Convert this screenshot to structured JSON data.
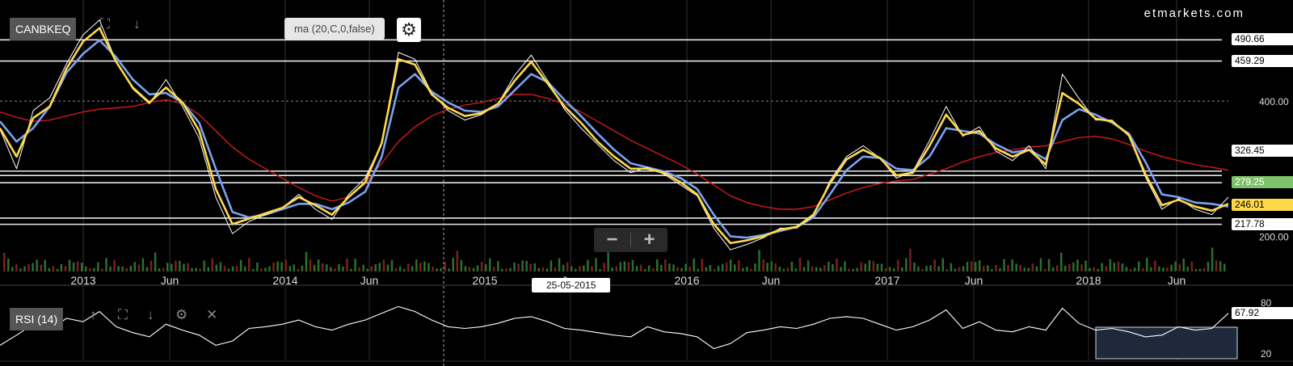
{
  "symbol": "CANBKEQ",
  "watermark": "etmarkets.com",
  "indicator_label": "ma (20,C,0,false)",
  "rsi_label": "RSI (14)",
  "cursor_date": "25-05-2015",
  "zoom": {
    "minus": "−",
    "plus": "+"
  },
  "icons": {
    "gear": "gear-icon",
    "expand": "expand-icon",
    "down": "arrow-down-icon",
    "up": "arrow-up-icon",
    "close": "close-icon",
    "minus": "minus-icon",
    "plus": "plus-icon"
  },
  "colors": {
    "price": "#ffffff",
    "ma20": "#ffd84a",
    "ma50": "#7aa2f0",
    "ma200": "#d11a1a",
    "tag_green": "#7ec36a",
    "tag_yellow": "#ffd84a",
    "tag_red": "#ff0000"
  },
  "price_tags": [
    {
      "label": "490.66",
      "value": 490.66,
      "style": "white"
    },
    {
      "label": "459.29",
      "value": 459.29,
      "style": "white"
    },
    {
      "label": "400.00",
      "value": 400.0,
      "style": "axis"
    },
    {
      "label": "326.45",
      "value": 326.45,
      "style": "white"
    },
    {
      "label": "279.25",
      "value": 279.25,
      "style": "green"
    },
    {
      "label": "246.01",
      "value": 246.01,
      "style": "yellow"
    },
    {
      "label": "217.78",
      "value": 217.78,
      "style": "white"
    },
    {
      "label": "200.00",
      "value": 200.0,
      "style": "axis"
    }
  ],
  "rsi_tag": {
    "label": "67.92",
    "value": 67.92
  },
  "chart_data": [
    {
      "type": "line",
      "title": "CANBKEQ",
      "x_ticks": [
        "2013",
        "Jun",
        "2014",
        "Jun",
        "2015",
        "Jun",
        "2016",
        "Jun",
        "2017",
        "Jun",
        "2018",
        "Jun"
      ],
      "ylim": [
        148,
        540
      ],
      "y_ticks": [
        "200.00",
        "400.00"
      ],
      "horizontal_levels": [
        490.66,
        459.29,
        296.5,
        290.0,
        279.25,
        227.0,
        217.78
      ],
      "grid": true,
      "series": [
        {
          "values": [
            358,
            300,
            386,
            405,
            455,
            498,
            520,
            458,
            418,
            396,
            432,
            392,
            345,
            258,
            204,
            222,
            232,
            242,
            262,
            240,
            225,
            262,
            286,
            338,
            472,
            462,
            412,
            386,
            372,
            380,
            396,
            438,
            468,
            430,
            388,
            360,
            336,
            312,
            294,
            302,
            292,
            276,
            260,
            212,
            180,
            188,
            198,
            212,
            212,
            230,
            282,
            318,
            334,
            316,
            286,
            296,
            342,
            392,
            348,
            362,
            326,
            312,
            334,
            300,
            440,
            404,
            372,
            372,
            348,
            288,
            240,
            256,
            240,
            232,
            258
          ]
        },
        {
          "values": [
            360,
            318,
            375,
            392,
            448,
            488,
            508,
            458,
            420,
            398,
            420,
            398,
            356,
            270,
            218,
            226,
            234,
            242,
            258,
            246,
            232,
            258,
            280,
            338,
            462,
            454,
            410,
            390,
            378,
            382,
            396,
            430,
            458,
            426,
            392,
            368,
            340,
            318,
            300,
            300,
            294,
            280,
            262,
            218,
            190,
            194,
            200,
            210,
            214,
            232,
            278,
            314,
            328,
            316,
            290,
            294,
            334,
            380,
            350,
            356,
            330,
            318,
            328,
            306,
            412,
            396,
            374,
            370,
            350,
            292,
            246,
            254,
            244,
            238,
            248
          ]
        },
        {
          "values": [
            370,
            340,
            360,
            392,
            442,
            470,
            490,
            465,
            432,
            410,
            412,
            398,
            368,
            300,
            236,
            228,
            232,
            240,
            248,
            248,
            240,
            250,
            266,
            318,
            420,
            440,
            414,
            398,
            386,
            384,
            392,
            416,
            440,
            428,
            402,
            378,
            352,
            328,
            308,
            302,
            296,
            286,
            270,
            232,
            200,
            198,
            202,
            208,
            214,
            228,
            262,
            298,
            318,
            316,
            300,
            298,
            318,
            360,
            356,
            352,
            336,
            324,
            328,
            314,
            372,
            388,
            380,
            368,
            352,
            310,
            262,
            258,
            250,
            248,
            244
          ]
        },
        {
          "values": [
            384,
            376,
            370,
            372,
            378,
            384,
            388,
            390,
            392,
            398,
            402,
            396,
            380,
            356,
            332,
            314,
            300,
            286,
            272,
            260,
            252,
            258,
            278,
            308,
            340,
            362,
            378,
            388,
            394,
            398,
            404,
            410,
            410,
            404,
            396,
            384,
            370,
            356,
            342,
            330,
            318,
            306,
            292,
            276,
            260,
            250,
            244,
            240,
            240,
            244,
            254,
            264,
            272,
            278,
            282,
            284,
            292,
            300,
            310,
            318,
            324,
            328,
            332,
            334,
            340,
            346,
            348,
            344,
            336,
            326,
            318,
            312,
            306,
            302,
            298
          ]
        }
      ]
    },
    {
      "type": "line",
      "title": "RSI (14)",
      "ylim": [
        15,
        85
      ],
      "y_ticks": [
        "80",
        "20"
      ],
      "series": [
        {
          "values": [
            30,
            42,
            55,
            48,
            62,
            58,
            70,
            52,
            45,
            40,
            55,
            48,
            42,
            30,
            35,
            50,
            52,
            55,
            60,
            52,
            48,
            55,
            60,
            68,
            76,
            70,
            60,
            52,
            50,
            52,
            56,
            62,
            64,
            58,
            50,
            48,
            45,
            42,
            40,
            52,
            46,
            44,
            40,
            26,
            32,
            45,
            48,
            52,
            50,
            55,
            62,
            64,
            62,
            55,
            48,
            52,
            60,
            72,
            50,
            58,
            48,
            46,
            52,
            48,
            74,
            56,
            48,
            50,
            46,
            40,
            42,
            52,
            48,
            50,
            67.92
          ]
        }
      ]
    }
  ]
}
